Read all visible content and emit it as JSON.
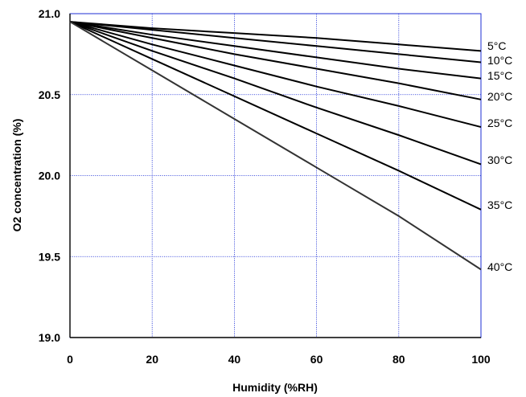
{
  "chart_data": {
    "type": "line",
    "title": "",
    "xlabel": "Humidity (%RH)",
    "ylabel": "O2 concentration (%)",
    "xlim": [
      0,
      100
    ],
    "ylim": [
      19.0,
      21.0
    ],
    "x_ticks": [
      "0",
      "20",
      "40",
      "60",
      "80",
      "100"
    ],
    "y_ticks": [
      "19.0",
      "19.5",
      "20.0",
      "20.5",
      "21.0"
    ],
    "grid": true,
    "legend": "labels at right end of each line",
    "colors": {
      "grid": "#1c2fd6",
      "frame": "#1c2fd6",
      "lines": "#000000"
    },
    "x": [
      0,
      20,
      40,
      60,
      80,
      100
    ],
    "series": [
      {
        "name": "5°C",
        "values": [
          20.95,
          20.91,
          20.88,
          20.85,
          20.81,
          20.77
        ]
      },
      {
        "name": "10°C",
        "values": [
          20.95,
          20.9,
          20.85,
          20.8,
          20.75,
          20.7
        ]
      },
      {
        "name": "15°C",
        "values": [
          20.95,
          20.87,
          20.8,
          20.73,
          20.66,
          20.6
        ]
      },
      {
        "name": "20°C",
        "values": [
          20.95,
          20.85,
          20.75,
          20.66,
          20.57,
          20.47
        ]
      },
      {
        "name": "25°C",
        "values": [
          20.95,
          20.81,
          20.68,
          20.55,
          20.43,
          20.3
        ]
      },
      {
        "name": "30°C",
        "values": [
          20.95,
          20.77,
          20.6,
          20.42,
          20.25,
          20.07
        ]
      },
      {
        "name": "35°C",
        "values": [
          20.95,
          20.72,
          20.49,
          20.26,
          20.03,
          19.79
        ]
      },
      {
        "name": "40°C",
        "values": [
          20.95,
          20.65,
          20.35,
          20.05,
          19.75,
          19.42
        ]
      }
    ]
  }
}
